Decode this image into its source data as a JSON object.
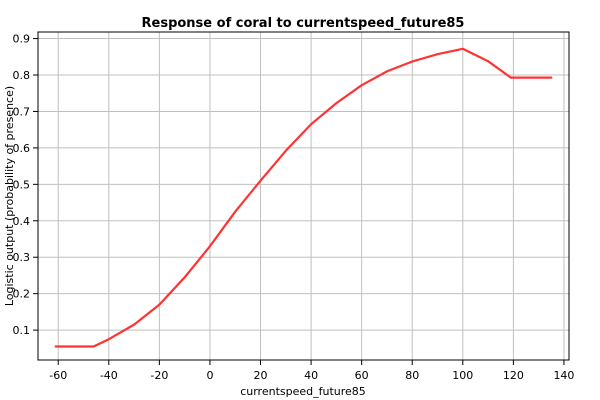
{
  "chart_data": {
    "type": "line",
    "title": "Response of coral to currentspeed_future85",
    "xlabel": "currentspeed_future85",
    "ylabel": "Logistic output (probability of presence)",
    "xlim": [
      -68,
      142
    ],
    "ylim": [
      0.018,
      0.918
    ],
    "x_ticks": [
      -60,
      -40,
      -20,
      0,
      20,
      40,
      60,
      80,
      100,
      120,
      140
    ],
    "y_ticks": [
      0.1,
      0.2,
      0.3,
      0.4,
      0.5,
      0.6,
      0.7,
      0.8,
      0.9
    ],
    "x_tick_labels": [
      "-60",
      "-40",
      "-20",
      "0",
      "20",
      "40",
      "60",
      "80",
      "100",
      "120",
      "140"
    ],
    "y_tick_labels": [
      "0.1",
      "0.2",
      "0.3",
      "0.4",
      "0.5",
      "0.6",
      "0.7",
      "0.8",
      "0.9"
    ],
    "grid": true,
    "series": [
      {
        "color": "#ff3333",
        "x": [
          -61,
          -46,
          -40,
          -30,
          -20,
          -10,
          0,
          10,
          20,
          30,
          40,
          50,
          60,
          70,
          80,
          90,
          100,
          110,
          119,
          135
        ],
        "y": [
          0.055,
          0.055,
          0.075,
          0.115,
          0.17,
          0.245,
          0.33,
          0.425,
          0.51,
          0.592,
          0.665,
          0.723,
          0.772,
          0.81,
          0.837,
          0.857,
          0.872,
          0.838,
          0.793,
          0.793
        ]
      }
    ]
  }
}
